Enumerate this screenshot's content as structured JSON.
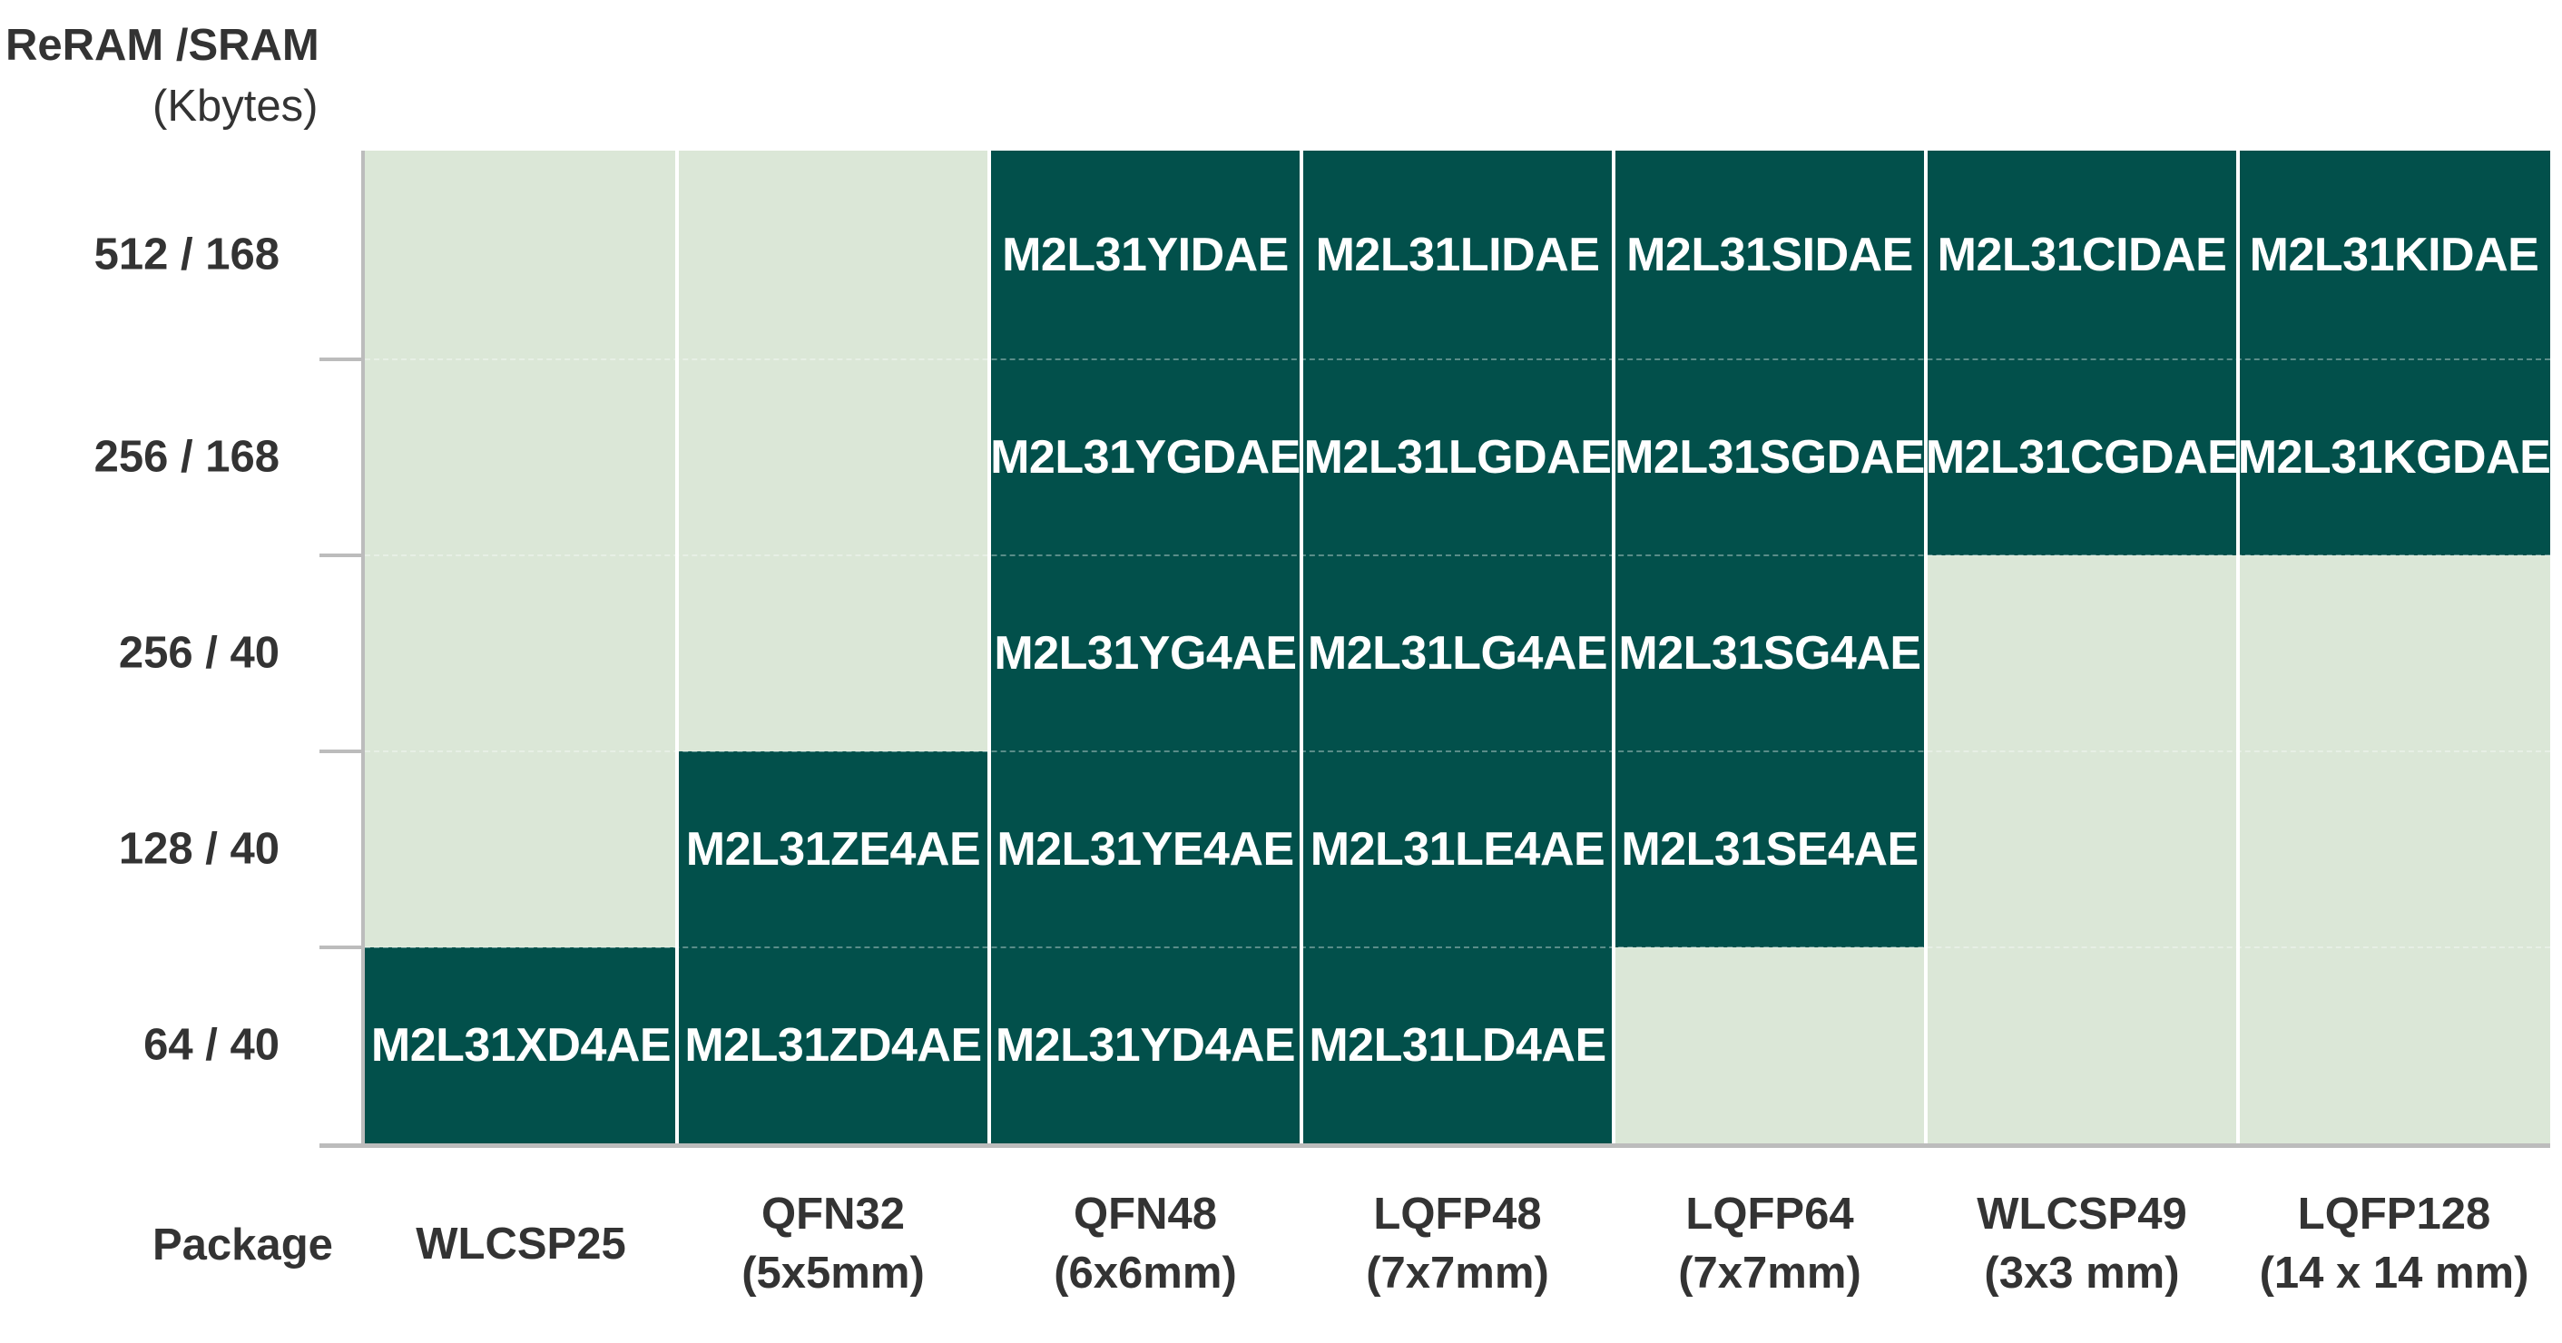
{
  "y_axis": {
    "label_line1": "ReRAM /SRAM",
    "label_line2": "(Kbytes)",
    "rows": [
      "512 / 168",
      "256 / 168",
      "256 / 40",
      "128 / 40",
      "64 / 40"
    ]
  },
  "x_axis": {
    "label": "Package",
    "columns": [
      {
        "name": "WLCSP25",
        "size": ""
      },
      {
        "name": "QFN32",
        "size": "(5x5mm)"
      },
      {
        "name": "QFN48",
        "size": "(6x6mm)"
      },
      {
        "name": "LQFP48",
        "size": "(7x7mm)"
      },
      {
        "name": "LQFP64",
        "size": "(7x7mm)"
      },
      {
        "name": "WLCSP49",
        "size": "(3x3 mm)"
      },
      {
        "name": "LQFP128",
        "size": "(14 x 14 mm)"
      }
    ]
  },
  "grid": [
    [
      "",
      "",
      "M2L31YIDAE",
      "M2L31LIDAE",
      "M2L31SIDAE",
      "M2L31CIDAE",
      "M2L31KIDAE"
    ],
    [
      "",
      "",
      "M2L31YGDAE",
      "M2L31LGDAE",
      "M2L31SGDAE",
      "M2L31CGDAE",
      "M2L31KGDAE"
    ],
    [
      "",
      "",
      "M2L31YG4AE",
      "M2L31LG4AE",
      "M2L31SG4AE",
      "",
      ""
    ],
    [
      "",
      "M2L31ZE4AE",
      "M2L31YE4AE",
      "M2L31LE4AE",
      "M2L31SE4AE",
      "",
      ""
    ],
    [
      "M2L31XD4AE",
      "M2L31ZD4AE",
      "M2L31YD4AE",
      "M2L31LD4AE",
      "",
      "",
      ""
    ]
  ],
  "colors": {
    "available": "#02504b",
    "unavailable": "#dbe7d7",
    "text_on_available": "#ffffff",
    "label_text": "#333333",
    "axis": "#bcbcbc"
  }
}
